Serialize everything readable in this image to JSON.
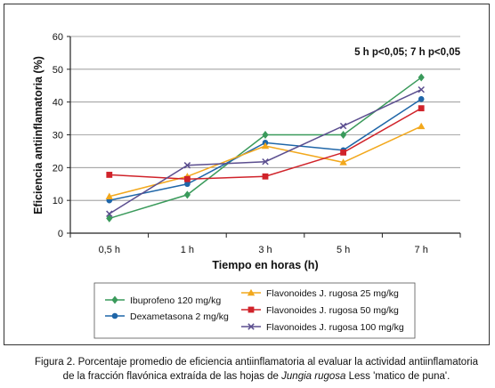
{
  "chart_data": {
    "type": "line",
    "annotation": "5 h p<0,05; 7 h p<0,05",
    "xlabel": "Tiempo en horas (h)",
    "ylabel": "Eficiencia antiinflamatoria (%)",
    "categories": [
      "0,5 h",
      "1 h",
      "3 h",
      "5 h",
      "7 h"
    ],
    "ylim": [
      0,
      60
    ],
    "yticks": [
      0,
      10,
      20,
      30,
      40,
      50,
      60
    ],
    "grid": true,
    "legend_position": "bottom",
    "series": [
      {
        "name": "Ibuprofeno 120 mg/kg",
        "values": [
          4.5,
          11.7,
          30,
          30,
          47.5
        ],
        "color": "#3a9a5b",
        "marker": "diamond"
      },
      {
        "name": "Dexametasona 2 mg/kg",
        "values": [
          10,
          15,
          27.6,
          25.3,
          40.9
        ],
        "color": "#1f66a8",
        "marker": "circle"
      },
      {
        "name": "Flavonoides J. rugosa 25 mg/kg",
        "values": [
          11.2,
          17.3,
          26.6,
          21.6,
          32.6
        ],
        "color": "#f2a81d",
        "marker": "triangle"
      },
      {
        "name": "Flavonoides J. rugosa 50 mg/kg",
        "values": [
          17.8,
          16.5,
          17.3,
          24.6,
          38.1
        ],
        "color": "#d0232a",
        "marker": "square"
      },
      {
        "name": "Flavonoides J. rugosa 100 mg/kg",
        "values": [
          5.9,
          20.7,
          21.8,
          32.7,
          43.8
        ],
        "color": "#5b4e8f",
        "marker": "x"
      }
    ]
  },
  "caption": {
    "line1": "Figura 2. Porcentaje promedio de eficiencia antiinflamatoria al evaluar la actividad antiinflamatoria",
    "line2_before": "de la fracción flavónica extraída de las hojas de ",
    "line2_italic": "Jungia rugosa",
    "line2_after": " Less 'matico de puna'."
  }
}
